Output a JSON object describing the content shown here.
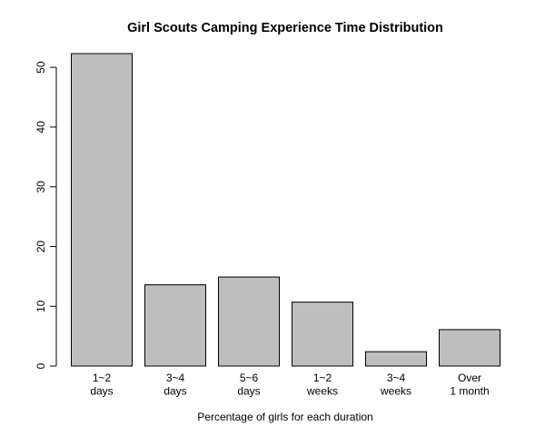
{
  "chart_data": {
    "type": "bar",
    "title": "Girl Scouts Camping Experience Time Distribution",
    "xlabel": "Percentage of girls for each duration",
    "ylabel": "",
    "categories": [
      [
        "1~2",
        "days"
      ],
      [
        "3~4",
        "days"
      ],
      [
        "5~6",
        "days"
      ],
      [
        "1~2",
        "weeks"
      ],
      [
        "3~4",
        "weeks"
      ],
      [
        "Over",
        "1 month"
      ]
    ],
    "values": [
      52.3,
      13.6,
      14.9,
      10.7,
      2.4,
      6.1
    ],
    "ylim": [
      0,
      52.3
    ],
    "yticks": [
      0,
      10,
      20,
      30,
      40,
      50
    ],
    "bar_color": "#bebebe",
    "grid": false,
    "legend": "none"
  }
}
